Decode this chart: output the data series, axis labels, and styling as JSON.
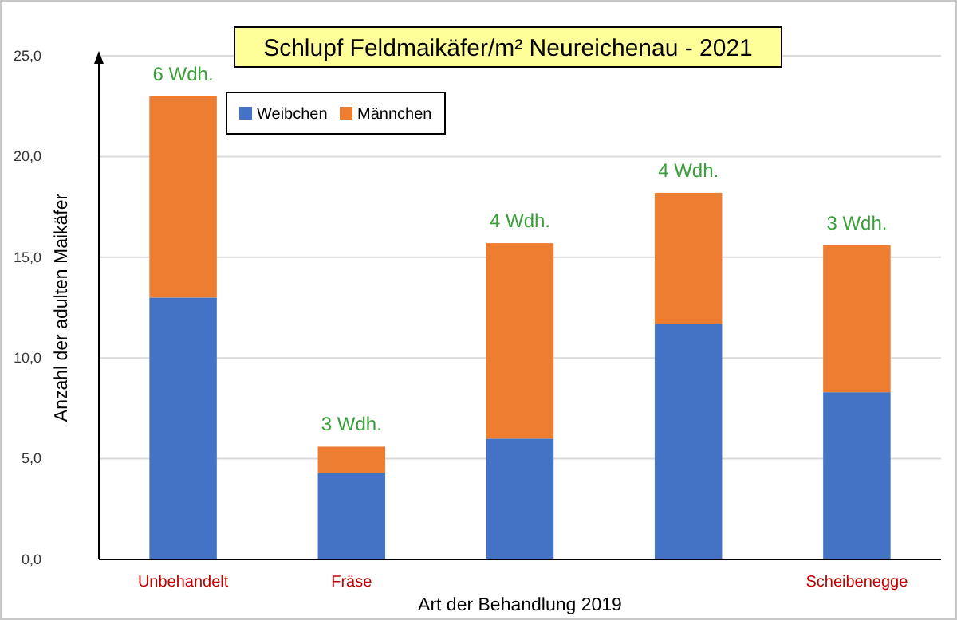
{
  "chart_data": {
    "type": "bar",
    "stacked": true,
    "title": "Schlupf Feldmaikäfer/m² Neureichenau - 2021",
    "xlabel": "Art der Behandlung 2019",
    "ylabel": "Anzahl der adulten Maikäfer",
    "categories": [
      "Unbehandelt",
      "Fräse",
      null,
      null,
      "Scheibenegge"
    ],
    "series": [
      {
        "name": "Weibchen",
        "color": "#4472c4",
        "values": [
          13.0,
          4.3,
          6.0,
          11.7,
          8.3
        ]
      },
      {
        "name": "Männchen",
        "color": "#ed7d31",
        "values": [
          10.0,
          1.3,
          9.7,
          6.5,
          7.3
        ]
      }
    ],
    "ylim": [
      0,
      25
    ],
    "yticks": [
      {
        "value": 0,
        "label": "0,0"
      },
      {
        "value": 5,
        "label": "5,0"
      },
      {
        "value": 10,
        "label": "10,0"
      },
      {
        "value": 15,
        "label": "15,0"
      },
      {
        "value": 20,
        "label": "20,0"
      },
      {
        "value": 25,
        "label": "25,0"
      }
    ],
    "grid": "y",
    "legend": "top left",
    "annotations": [
      "6 Wdh.",
      "3 Wdh.",
      "4 Wdh.",
      "4 Wdh.",
      "3 Wdh."
    ]
  }
}
